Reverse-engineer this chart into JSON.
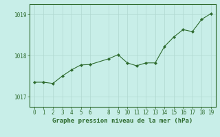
{
  "x": [
    0,
    1,
    2,
    3,
    4,
    5,
    6,
    8,
    9,
    10,
    11,
    12,
    13,
    14,
    15,
    16,
    17,
    18,
    19
  ],
  "y": [
    1017.35,
    1017.35,
    1017.32,
    1017.5,
    1017.65,
    1017.77,
    1017.78,
    1017.92,
    1018.02,
    1017.82,
    1017.75,
    1017.82,
    1017.82,
    1018.22,
    1018.45,
    1018.63,
    1018.58,
    1018.88,
    1019.02
  ],
  "line_color": "#2d6a2d",
  "marker_color": "#2d6a2d",
  "bg_color": "#c8eee8",
  "grid_color": "#b0d8d0",
  "text_color": "#2d6a2d",
  "xlabel": "Graphe pression niveau de la mer (hPa)",
  "yticks": [
    1017,
    1018,
    1019
  ],
  "xticks": [
    0,
    1,
    2,
    3,
    4,
    5,
    6,
    8,
    9,
    10,
    11,
    12,
    13,
    14,
    15,
    16,
    17,
    18,
    19
  ],
  "ylim": [
    1016.75,
    1019.25
  ],
  "xlim": [
    -0.5,
    19.5
  ]
}
